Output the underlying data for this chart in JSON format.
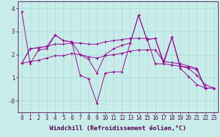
{
  "xlabel": "Windchill (Refroidissement éolien,°C)",
  "bg_color": "#c8ece8",
  "line_color": "#990099",
  "grid_color": "#aadddd",
  "xlim": [
    -0.5,
    23.5
  ],
  "ylim": [
    -0.5,
    4.3
  ],
  "yticks": [
    0,
    1,
    2,
    3,
    4
  ],
  "ytick_labels": [
    "-0",
    "1",
    "2",
    "3",
    "4"
  ],
  "xticks": [
    0,
    1,
    2,
    3,
    4,
    5,
    6,
    7,
    8,
    9,
    10,
    11,
    12,
    13,
    14,
    15,
    16,
    17,
    18,
    19,
    20,
    21,
    22,
    23
  ],
  "series1": [
    3.85,
    1.6,
    2.2,
    2.25,
    2.85,
    2.6,
    2.55,
    1.1,
    0.95,
    -0.1,
    1.2,
    1.25,
    1.25,
    2.5,
    3.7,
    2.65,
    2.7,
    1.6,
    2.75,
    1.4,
    1.05,
    0.7,
    0.55,
    0.55
  ],
  "series2": [
    1.62,
    2.25,
    2.3,
    2.35,
    2.45,
    2.45,
    2.5,
    2.5,
    2.45,
    2.45,
    2.55,
    2.6,
    2.65,
    2.7,
    2.7,
    2.7,
    1.6,
    1.6,
    1.55,
    1.5,
    1.45,
    1.35,
    0.55,
    0.55
  ],
  "series3": [
    1.62,
    1.7,
    1.75,
    1.85,
    1.95,
    1.95,
    2.05,
    2.0,
    1.9,
    1.85,
    1.95,
    2.0,
    2.05,
    2.15,
    2.2,
    2.2,
    2.2,
    1.7,
    1.65,
    1.6,
    1.5,
    1.4,
    0.55,
    0.55
  ],
  "series4": [
    1.62,
    2.25,
    2.3,
    2.35,
    2.85,
    2.6,
    2.55,
    2.0,
    1.8,
    1.2,
    2.0,
    2.25,
    2.4,
    2.5,
    3.7,
    2.65,
    2.7,
    1.7,
    2.75,
    1.5,
    1.4,
    1.1,
    0.7,
    0.55
  ],
  "xlabel_fontsize": 6.5,
  "tick_fontsize": 5.5
}
